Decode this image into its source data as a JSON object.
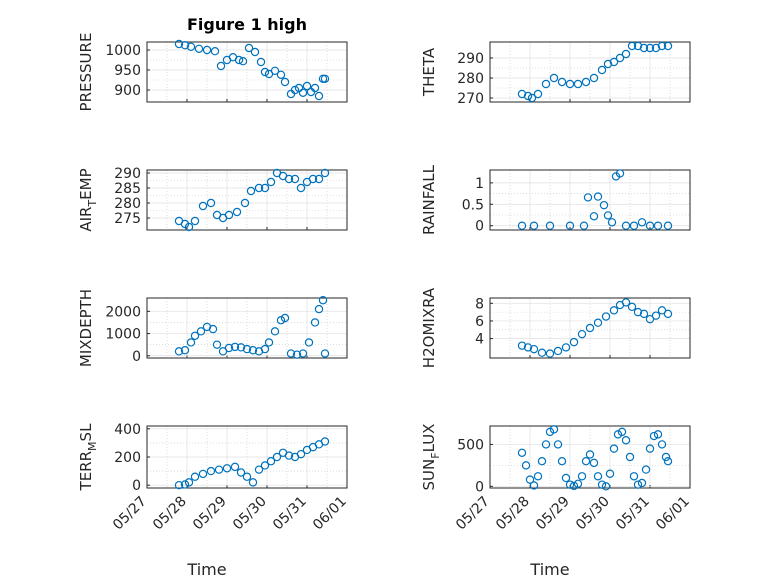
{
  "chart_data": [
    {
      "type": "scatter",
      "title": "Figure 1 high",
      "ylabel": "PRESSURE",
      "ylim": [
        870,
        1020
      ],
      "yticks": [
        900,
        950,
        1000
      ],
      "xlim": [
        0,
        5
      ],
      "x": [
        0.8,
        0.95,
        1.1,
        1.3,
        1.5,
        1.7,
        1.85,
        2.0,
        2.15,
        2.3,
        2.4,
        2.55,
        2.7,
        2.85,
        2.95,
        3.05,
        3.2,
        3.35,
        3.45,
        3.6,
        3.7,
        3.8,
        3.9,
        4.0,
        4.1,
        4.2,
        4.3,
        4.4,
        4.45
      ],
      "y": [
        1015,
        1012,
        1008,
        1003,
        1000,
        997,
        960,
        975,
        982,
        975,
        972,
        1005,
        995,
        970,
        945,
        940,
        948,
        938,
        920,
        890,
        900,
        905,
        893,
        910,
        895,
        905,
        885,
        928,
        928
      ],
      "series": [
        {
          "values": [
            1015,
            1012,
            1008,
            1003,
            1000,
            997,
            960,
            975,
            982,
            975,
            972,
            1005,
            995,
            970,
            945,
            940,
            948,
            938,
            920,
            890,
            900,
            905,
            893,
            910,
            895,
            905,
            885,
            928,
            928
          ]
        }
      ]
    },
    {
      "type": "scatter",
      "ylabel": "THETA",
      "ylim": [
        268,
        298
      ],
      "yticks": [
        270,
        280,
        290
      ],
      "xlim": [
        0,
        5
      ],
      "x": [
        0.8,
        0.95,
        1.05,
        1.2,
        1.4,
        1.6,
        1.8,
        2.0,
        2.2,
        2.4,
        2.6,
        2.8,
        2.95,
        3.1,
        3.25,
        3.4,
        3.55,
        3.7,
        3.85,
        4.0,
        4.15,
        4.3,
        4.45
      ],
      "y": [
        272,
        271,
        270,
        272,
        277,
        280,
        278,
        277,
        277,
        278,
        280,
        284,
        287,
        288,
        290,
        292,
        296,
        296,
        295,
        295,
        295,
        296,
        296
      ]
    },
    {
      "type": "scatter",
      "ylabel": "AIR_TEMP",
      "ylim": [
        271,
        291
      ],
      "yticks": [
        275,
        280,
        285,
        290
      ],
      "xlim": [
        0,
        5
      ],
      "x": [
        0.8,
        0.95,
        1.05,
        1.2,
        1.4,
        1.6,
        1.75,
        1.9,
        2.05,
        2.25,
        2.45,
        2.6,
        2.8,
        2.95,
        3.1,
        3.25,
        3.4,
        3.55,
        3.7,
        3.85,
        4.0,
        4.15,
        4.3,
        4.45
      ],
      "y": [
        274,
        273,
        272,
        274,
        279,
        280,
        276,
        275,
        276,
        277,
        280,
        284,
        285,
        285,
        287,
        290,
        289,
        288,
        288,
        285,
        287,
        288,
        288,
        290
      ]
    },
    {
      "type": "scatter",
      "ylabel": "RAINFALL",
      "ylim": [
        -0.1,
        1.3
      ],
      "yticks": [
        0,
        0.5,
        1
      ],
      "xlim": [
        0,
        5
      ],
      "x": [
        0.8,
        1.1,
        1.5,
        2.0,
        2.35,
        2.45,
        2.6,
        2.7,
        2.85,
        2.95,
        3.05,
        3.15,
        3.25,
        3.4,
        3.6,
        3.8,
        4.0,
        4.2,
        4.45
      ],
      "y": [
        0,
        0,
        0,
        0,
        0,
        0.66,
        0.22,
        0.68,
        0.48,
        0.24,
        0.08,
        1.15,
        1.22,
        0,
        0,
        0.08,
        0,
        0,
        0
      ]
    },
    {
      "type": "scatter",
      "ylabel": "MIXDEPTH",
      "ylim": [
        -100,
        2600
      ],
      "yticks": [
        0,
        1000,
        2000
      ],
      "xlim": [
        0,
        5
      ],
      "x": [
        0.8,
        0.95,
        1.1,
        1.2,
        1.35,
        1.5,
        1.65,
        1.75,
        1.9,
        2.05,
        2.2,
        2.35,
        2.5,
        2.65,
        2.8,
        2.95,
        3.05,
        3.2,
        3.35,
        3.45,
        3.6,
        3.75,
        3.9,
        4.05,
        4.2,
        4.3,
        4.4,
        4.45
      ],
      "y": [
        200,
        250,
        600,
        900,
        1100,
        1300,
        1200,
        500,
        200,
        350,
        400,
        380,
        300,
        250,
        200,
        300,
        600,
        1100,
        1600,
        1700,
        100,
        50,
        100,
        600,
        1500,
        2100,
        2500,
        100
      ]
    },
    {
      "type": "scatter",
      "ylabel": "H2OMIXRA",
      "ylim": [
        1.8,
        8.6
      ],
      "yticks": [
        4,
        6,
        8
      ],
      "xlim": [
        0,
        5
      ],
      "x": [
        0.8,
        0.95,
        1.1,
        1.3,
        1.5,
        1.7,
        1.9,
        2.1,
        2.3,
        2.5,
        2.7,
        2.9,
        3.1,
        3.25,
        3.4,
        3.55,
        3.7,
        3.85,
        4.0,
        4.15,
        4.3,
        4.45
      ],
      "y": [
        3.2,
        3.0,
        2.8,
        2.4,
        2.3,
        2.6,
        3.0,
        3.6,
        4.5,
        5.2,
        5.8,
        6.5,
        7.2,
        7.8,
        8.1,
        7.6,
        7.0,
        6.8,
        6.2,
        6.6,
        7.2,
        6.8
      ]
    },
    {
      "type": "scatter",
      "ylabel": "TERR_MSL",
      "ylim": [
        -20,
        420
      ],
      "yticks": [
        0,
        200,
        400
      ],
      "xlim": [
        0,
        5
      ],
      "x": [
        0.8,
        0.95,
        1.05,
        1.2,
        1.4,
        1.6,
        1.8,
        2.0,
        2.2,
        2.35,
        2.5,
        2.65,
        2.8,
        2.95,
        3.1,
        3.25,
        3.4,
        3.55,
        3.7,
        3.85,
        4.0,
        4.15,
        4.3,
        4.45
      ],
      "y": [
        0,
        5,
        20,
        60,
        80,
        100,
        110,
        120,
        130,
        90,
        60,
        20,
        110,
        140,
        170,
        200,
        230,
        210,
        200,
        220,
        250,
        270,
        290,
        310
      ]
    },
    {
      "type": "scatter",
      "ylabel": "SUN_FLUX",
      "ylim": [
        -20,
        720
      ],
      "yticks": [
        0,
        500
      ],
      "xlim": [
        0,
        5
      ],
      "x": [
        0.8,
        0.9,
        1.0,
        1.1,
        1.2,
        1.3,
        1.4,
        1.5,
        1.6,
        1.7,
        1.8,
        1.9,
        2.0,
        2.1,
        2.2,
        2.3,
        2.4,
        2.5,
        2.6,
        2.7,
        2.8,
        2.9,
        3.0,
        3.1,
        3.2,
        3.3,
        3.4,
        3.5,
        3.6,
        3.7,
        3.8,
        3.9,
        4.0,
        4.1,
        4.2,
        4.3,
        4.4,
        4.45
      ],
      "y": [
        400,
        250,
        80,
        10,
        120,
        300,
        500,
        650,
        680,
        500,
        300,
        100,
        20,
        5,
        30,
        120,
        300,
        380,
        280,
        120,
        20,
        0,
        150,
        450,
        620,
        650,
        550,
        350,
        120,
        20,
        40,
        200,
        450,
        600,
        620,
        500,
        350,
        300
      ]
    }
  ],
  "xaxis": {
    "tick_labels": [
      "05/27",
      "05/28",
      "05/29",
      "05/30",
      "05/31",
      "06/01"
    ],
    "label": "Time"
  },
  "colors": {
    "marker": "#0072bd",
    "axes": "#262626",
    "grid": "#dfdfdf"
  }
}
